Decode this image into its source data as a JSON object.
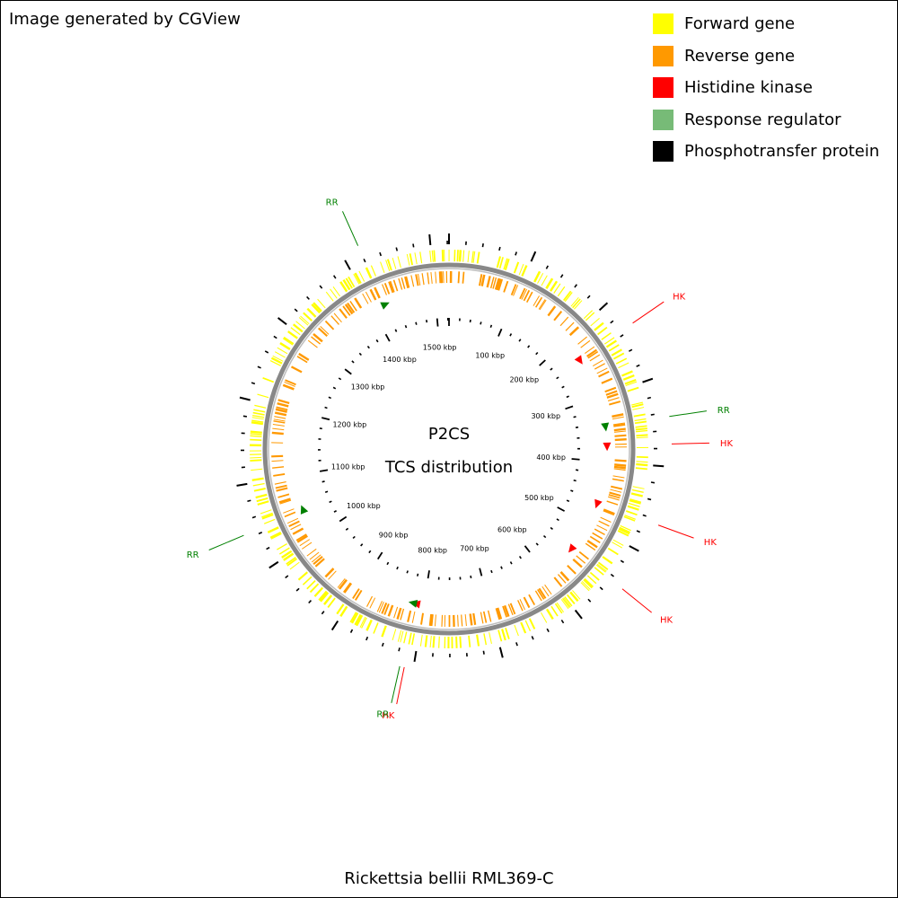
{
  "credit": "Image generated by CGView",
  "caption": "Rickettsia bellii RML369-C",
  "center": {
    "line1": "P2CS",
    "line2": "TCS distribution"
  },
  "legend": [
    {
      "label": "Forward gene",
      "color": "#FFFF00"
    },
    {
      "label": "Reverse gene",
      "color": "#FF9900"
    },
    {
      "label": "Histidine kinase",
      "color": "#FF0000"
    },
    {
      "label": "Response regulator",
      "color": "#77BB77"
    },
    {
      "label": "Phosphotransfer protein",
      "color": "#000000"
    }
  ],
  "map": {
    "genome_kbp": 1522,
    "backbone_color": "#888888",
    "tick_labels": [
      "100 kbp",
      "200 kbp",
      "300 kbp",
      "400 kbp",
      "500 kbp",
      "600 kbp",
      "700 kbp",
      "800 kbp",
      "900 kbp",
      "1000 kbp",
      "1100 kbp",
      "1200 kbp",
      "1300 kbp",
      "1400 kbp",
      "1500 kbp"
    ],
    "features": [
      {
        "type": "HK",
        "label": "HK",
        "kbp": 235,
        "color": "#FF0000"
      },
      {
        "type": "RR",
        "label": "RR",
        "kbp": 345,
        "color": "#008000"
      },
      {
        "type": "HK",
        "label": "HK",
        "kbp": 375,
        "color": "#FF0000"
      },
      {
        "type": "HK",
        "label": "HK",
        "kbp": 465,
        "color": "#FF0000"
      },
      {
        "type": "HK",
        "label": "HK",
        "kbp": 545,
        "color": "#FF0000"
      },
      {
        "type": "HK",
        "label": "HK",
        "kbp": 810,
        "color": "#FF0000"
      },
      {
        "type": "RR",
        "label": "RR",
        "kbp": 815,
        "color": "#008000"
      },
      {
        "type": "RR",
        "label": "RR",
        "kbp": 1045,
        "color": "#008000"
      },
      {
        "type": "RR",
        "label": "RR",
        "kbp": 1420,
        "color": "#008000"
      }
    ]
  }
}
